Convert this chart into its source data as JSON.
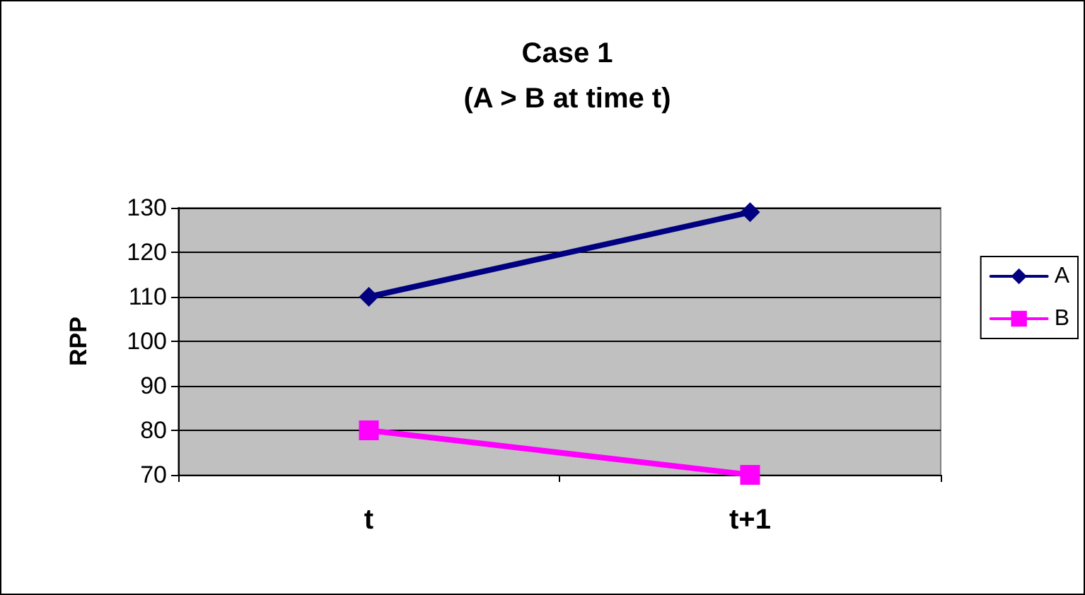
{
  "chart_data": {
    "type": "line",
    "title": "Case 1",
    "subtitle": "(A > B at time t)",
    "ylabel": "RPP",
    "categories": [
      "t",
      "t+1"
    ],
    "series": [
      {
        "name": "A",
        "color": "#000080",
        "marker": "diamond",
        "values": [
          110,
          129
        ]
      },
      {
        "name": "B",
        "color": "#ff00ff",
        "marker": "square",
        "values": [
          80,
          70
        ]
      }
    ],
    "ylim": [
      70,
      130
    ],
    "yticks": [
      70,
      80,
      90,
      100,
      110,
      120,
      130
    ],
    "grid": "y",
    "legend": "right"
  }
}
